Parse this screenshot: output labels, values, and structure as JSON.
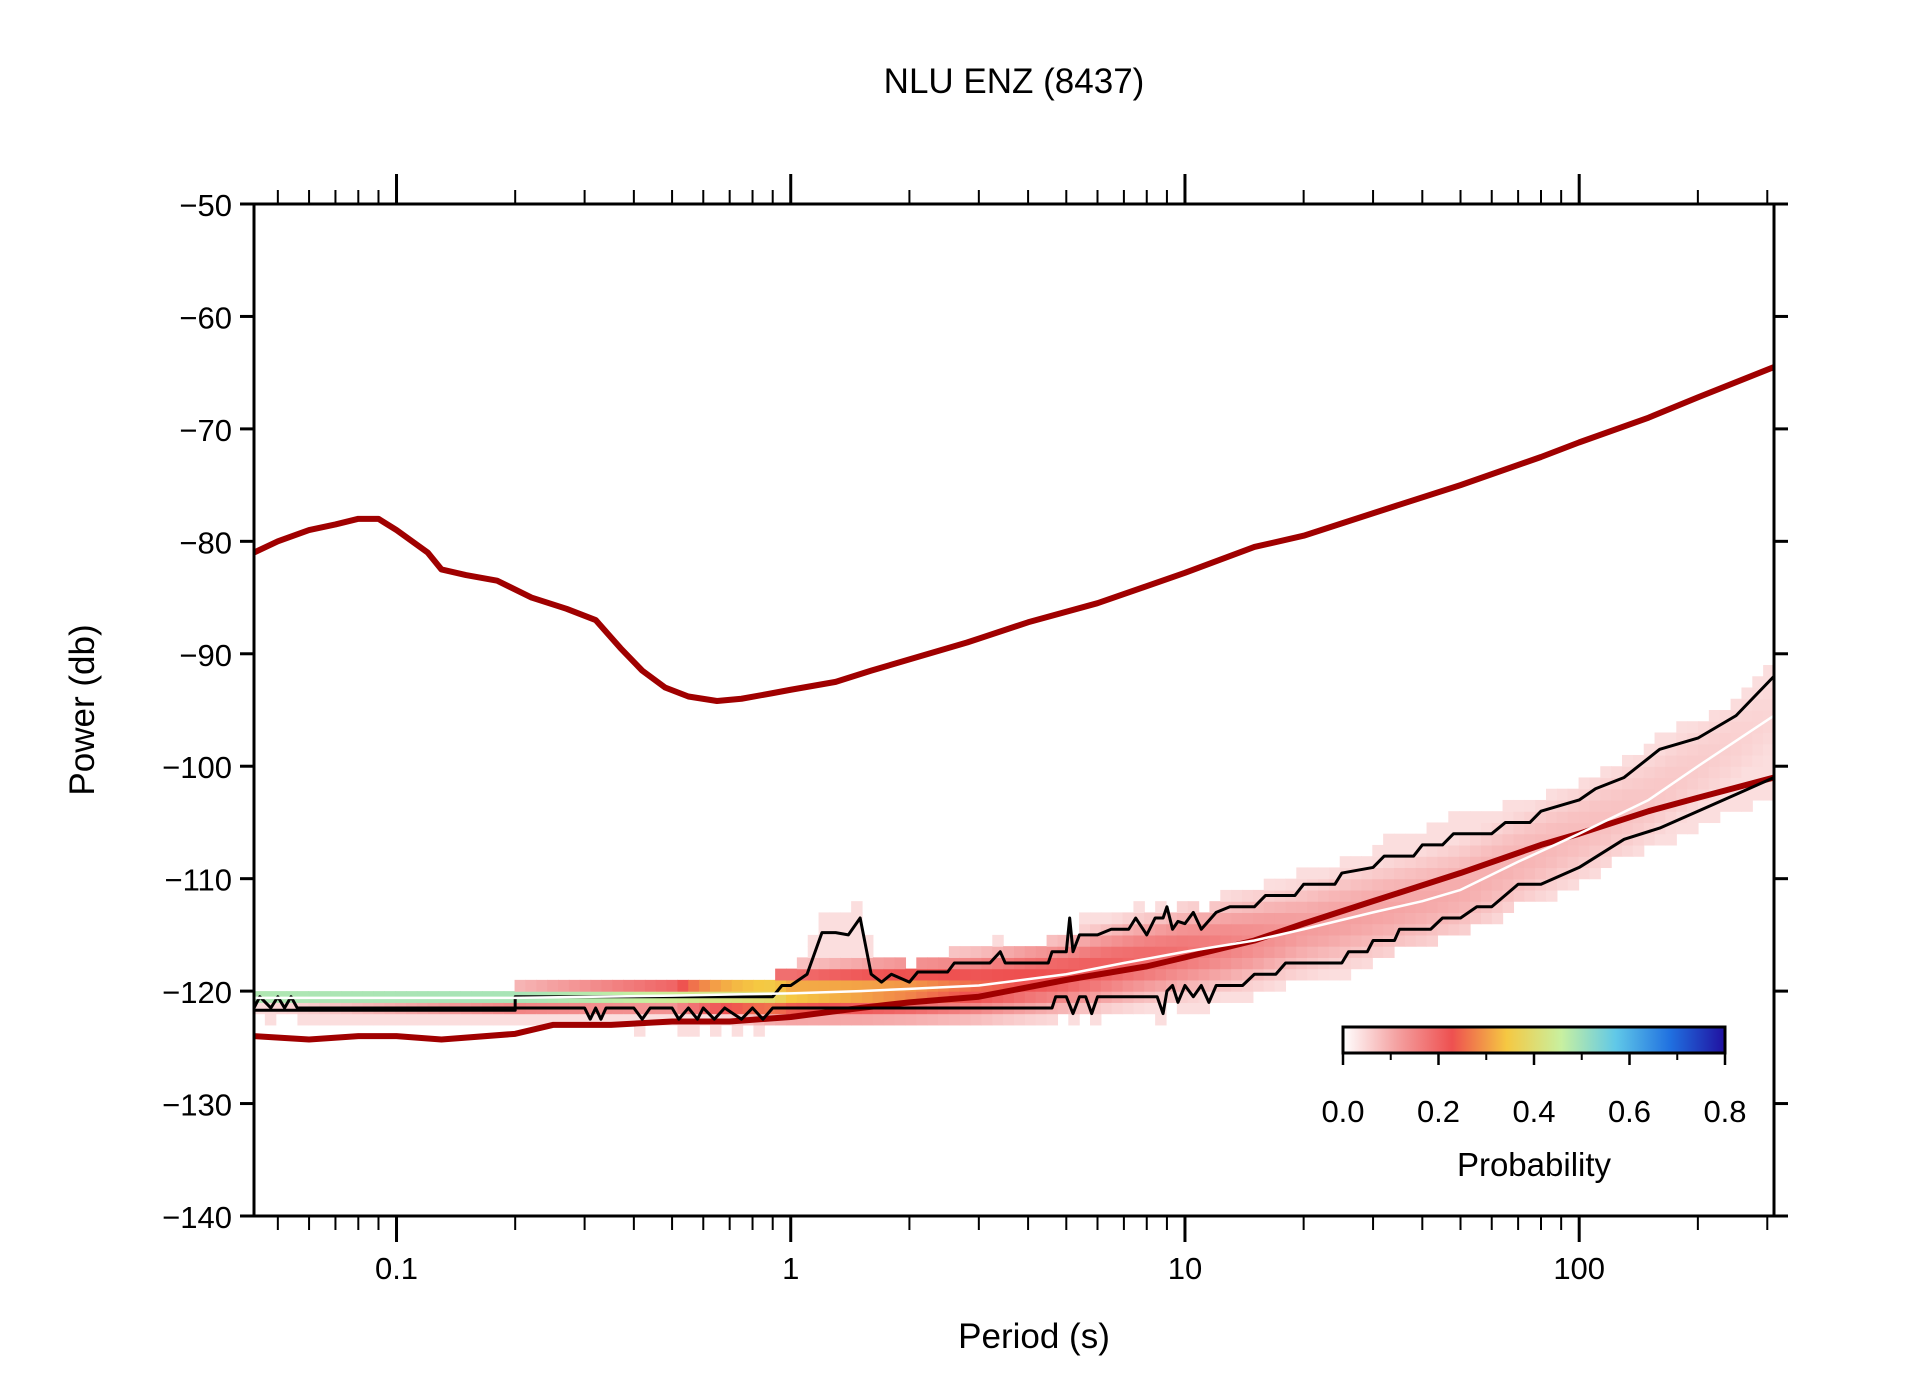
{
  "chart_data": {
    "type": "line",
    "title": "NLU ENZ (8437)",
    "xlabel": "Period (s)",
    "ylabel": "Power (db)",
    "x_scale": "log",
    "xlim": [
      0.0435,
      312
    ],
    "ylim": [
      -140,
      -50
    ],
    "x_ticks": [
      0.1,
      1,
      10,
      100
    ],
    "x_tick_labels": [
      "0.1",
      "1",
      "10",
      "100"
    ],
    "y_ticks": [
      -140,
      -130,
      -120,
      -110,
      -100,
      -90,
      -80,
      -70,
      -60,
      -50
    ],
    "y_tick_labels": [
      "−140",
      "−130",
      "−120",
      "−110",
      "−100",
      "−90",
      "−80",
      "−70",
      "−60",
      "−50"
    ],
    "grid": false,
    "colorbar": {
      "label": "Probability",
      "range": [
        0,
        0.8
      ],
      "ticks": [
        0,
        0.2,
        0.4,
        0.6,
        0.8
      ],
      "tick_labels": [
        "0.0",
        "0.2",
        "0.4",
        "0.6",
        "0.8"
      ],
      "position": "bottom-right",
      "colors": [
        "#ffffff",
        "#f4a0a0",
        "#ee5050",
        "#f5c842",
        "#c8f0a0",
        "#60c8e8",
        "#2070e0",
        "#2010a0"
      ]
    },
    "series": [
      {
        "role": "new-high-noise-model",
        "color": "#a00000",
        "points": [
          [
            0.0435,
            -81
          ],
          [
            0.05,
            -80
          ],
          [
            0.06,
            -79
          ],
          [
            0.07,
            -78.5
          ],
          [
            0.08,
            -78
          ],
          [
            0.09,
            -78
          ],
          [
            0.1,
            -79
          ],
          [
            0.12,
            -81
          ],
          [
            0.13,
            -82.5
          ],
          [
            0.15,
            -83
          ],
          [
            0.18,
            -83.5
          ],
          [
            0.22,
            -85
          ],
          [
            0.27,
            -86
          ],
          [
            0.32,
            -87
          ],
          [
            0.37,
            -89.5
          ],
          [
            0.42,
            -91.5
          ],
          [
            0.48,
            -93
          ],
          [
            0.55,
            -93.8
          ],
          [
            0.65,
            -94.2
          ],
          [
            0.75,
            -94
          ],
          [
            0.9,
            -93.5
          ],
          [
            1.0,
            -93.2
          ],
          [
            1.3,
            -92.5
          ],
          [
            1.6,
            -91.5
          ],
          [
            2.0,
            -90.5
          ],
          [
            2.8,
            -89
          ],
          [
            4.0,
            -87.2
          ],
          [
            6.0,
            -85.5
          ],
          [
            10,
            -82.8
          ],
          [
            15,
            -80.5
          ],
          [
            20,
            -79.5
          ],
          [
            30,
            -77.5
          ],
          [
            50,
            -75
          ],
          [
            80,
            -72.5
          ],
          [
            100,
            -71.2
          ],
          [
            150,
            -69
          ],
          [
            200,
            -67.2
          ],
          [
            312,
            -64.5
          ]
        ]
      },
      {
        "role": "new-low-noise-model",
        "color": "#a00000",
        "points": [
          [
            0.0435,
            -124
          ],
          [
            0.06,
            -124.3
          ],
          [
            0.08,
            -124
          ],
          [
            0.1,
            -124
          ],
          [
            0.13,
            -124.3
          ],
          [
            0.2,
            -123.8
          ],
          [
            0.25,
            -123
          ],
          [
            0.35,
            -123
          ],
          [
            0.5,
            -122.7
          ],
          [
            0.7,
            -122.7
          ],
          [
            1.0,
            -122.3
          ],
          [
            1.5,
            -121.5
          ],
          [
            2,
            -121
          ],
          [
            3,
            -120.5
          ],
          [
            5,
            -119
          ],
          [
            8,
            -117.8
          ],
          [
            10,
            -117
          ],
          [
            15,
            -115.5
          ],
          [
            20,
            -114
          ],
          [
            30,
            -112
          ],
          [
            50,
            -109.5
          ],
          [
            80,
            -107
          ],
          [
            100,
            -106
          ],
          [
            150,
            -104
          ],
          [
            200,
            -102.8
          ],
          [
            312,
            -101
          ]
        ]
      },
      {
        "role": "mode",
        "color": "#ffffff",
        "points": [
          [
            0.0435,
            -120.6
          ],
          [
            0.2,
            -120.6
          ],
          [
            0.5,
            -120.4
          ],
          [
            1.0,
            -120.2
          ],
          [
            1.5,
            -120
          ],
          [
            2.0,
            -119.8
          ],
          [
            3,
            -119.5
          ],
          [
            5,
            -118.5
          ],
          [
            7,
            -117.5
          ],
          [
            10,
            -116.5
          ],
          [
            15,
            -115.5
          ],
          [
            20,
            -114.5
          ],
          [
            30,
            -113
          ],
          [
            40,
            -112
          ],
          [
            50,
            -111
          ],
          [
            70,
            -108.5
          ],
          [
            100,
            -106
          ],
          [
            150,
            -103
          ],
          [
            200,
            -100
          ],
          [
            312,
            -95.5
          ]
        ]
      },
      {
        "role": "upper-percentile",
        "color": "#000000",
        "points": [
          [
            0.0435,
            -121.7
          ],
          [
            0.2,
            -121.7
          ],
          [
            0.2,
            -120.5
          ],
          [
            0.9,
            -120.5
          ],
          [
            0.95,
            -119.5
          ],
          [
            1.0,
            -119.5
          ],
          [
            1.1,
            -118.5
          ],
          [
            1.2,
            -114.8
          ],
          [
            1.3,
            -114.8
          ],
          [
            1.4,
            -115
          ],
          [
            1.5,
            -113.5
          ],
          [
            1.6,
            -118.5
          ],
          [
            1.7,
            -119.2
          ],
          [
            1.8,
            -118.5
          ],
          [
            2.0,
            -119.2
          ],
          [
            2.1,
            -118.3
          ],
          [
            2.5,
            -118.3
          ],
          [
            2.6,
            -117.5
          ],
          [
            3.2,
            -117.5
          ],
          [
            3.4,
            -116.5
          ],
          [
            3.5,
            -117.5
          ],
          [
            4.5,
            -117.5
          ],
          [
            4.6,
            -116.5
          ],
          [
            5.0,
            -116.5
          ],
          [
            5.1,
            -113.5
          ],
          [
            5.2,
            -116.5
          ],
          [
            5.4,
            -115
          ],
          [
            6.0,
            -115
          ],
          [
            6.5,
            -114.5
          ],
          [
            7.2,
            -114.5
          ],
          [
            7.5,
            -113.5
          ],
          [
            8.0,
            -115
          ],
          [
            8.4,
            -113.5
          ],
          [
            8.8,
            -113.5
          ],
          [
            9.0,
            -112.5
          ],
          [
            9.3,
            -114.5
          ],
          [
            9.6,
            -113.8
          ],
          [
            10,
            -114
          ],
          [
            10.5,
            -113
          ],
          [
            11,
            -114.5
          ],
          [
            12,
            -113
          ],
          [
            13,
            -112.5
          ],
          [
            15,
            -112.5
          ],
          [
            16,
            -111.5
          ],
          [
            19,
            -111.5
          ],
          [
            20,
            -110.5
          ],
          [
            24,
            -110.5
          ],
          [
            25,
            -109.5
          ],
          [
            30,
            -109
          ],
          [
            32,
            -108
          ],
          [
            38,
            -108
          ],
          [
            40,
            -107
          ],
          [
            45,
            -107
          ],
          [
            48,
            -106
          ],
          [
            60,
            -106
          ],
          [
            65,
            -105
          ],
          [
            75,
            -105
          ],
          [
            80,
            -104
          ],
          [
            100,
            -103
          ],
          [
            110,
            -102
          ],
          [
            130,
            -101
          ],
          [
            160,
            -98.5
          ],
          [
            200,
            -97.5
          ],
          [
            250,
            -95.5
          ],
          [
            312,
            -92
          ]
        ]
      },
      {
        "role": "lower-percentile",
        "color": "#000000",
        "points": [
          [
            0.0435,
            -121.5
          ],
          [
            0.045,
            -120.5
          ],
          [
            0.048,
            -121.5
          ],
          [
            0.05,
            -120.5
          ],
          [
            0.052,
            -121.5
          ],
          [
            0.054,
            -120.5
          ],
          [
            0.056,
            -121.5
          ],
          [
            0.3,
            -121.5
          ],
          [
            0.31,
            -122.5
          ],
          [
            0.32,
            -121.5
          ],
          [
            0.33,
            -122.5
          ],
          [
            0.34,
            -121.5
          ],
          [
            0.4,
            -121.5
          ],
          [
            0.42,
            -122.5
          ],
          [
            0.44,
            -121.5
          ],
          [
            0.5,
            -121.5
          ],
          [
            0.52,
            -122.5
          ],
          [
            0.55,
            -121.5
          ],
          [
            0.58,
            -122.5
          ],
          [
            0.6,
            -121.5
          ],
          [
            0.64,
            -122.5
          ],
          [
            0.68,
            -121.5
          ],
          [
            0.75,
            -122.5
          ],
          [
            0.8,
            -121.5
          ],
          [
            0.85,
            -122.5
          ],
          [
            0.9,
            -121.5
          ],
          [
            4.6,
            -121.5
          ],
          [
            4.7,
            -120.5
          ],
          [
            5.0,
            -120.5
          ],
          [
            5.2,
            -122
          ],
          [
            5.4,
            -120.5
          ],
          [
            5.6,
            -120.5
          ],
          [
            5.8,
            -122
          ],
          [
            6.0,
            -120.5
          ],
          [
            8.5,
            -120.5
          ],
          [
            8.8,
            -122
          ],
          [
            9.0,
            -120
          ],
          [
            9.3,
            -119.5
          ],
          [
            9.6,
            -121
          ],
          [
            10,
            -119.5
          ],
          [
            10.5,
            -120.5
          ],
          [
            11,
            -119.5
          ],
          [
            11.5,
            -121
          ],
          [
            12,
            -119.5
          ],
          [
            14,
            -119.5
          ],
          [
            15,
            -118.5
          ],
          [
            17,
            -118.5
          ],
          [
            18,
            -117.5
          ],
          [
            25,
            -117.5
          ],
          [
            26,
            -116.5
          ],
          [
            29,
            -116.5
          ],
          [
            30,
            -115.5
          ],
          [
            34,
            -115.5
          ],
          [
            35,
            -114.5
          ],
          [
            42,
            -114.5
          ],
          [
            45,
            -113.5
          ],
          [
            50,
            -113.5
          ],
          [
            55,
            -112.5
          ],
          [
            60,
            -112.5
          ],
          [
            70,
            -110.5
          ],
          [
            80,
            -110.5
          ],
          [
            100,
            -109
          ],
          [
            130,
            -106.5
          ],
          [
            160,
            -105.5
          ],
          [
            200,
            -104
          ],
          [
            250,
            -102.5
          ],
          [
            312,
            -101
          ]
        ]
      }
    ],
    "probability_density": {
      "mode": [
        [
          0.0435,
          -120.6
        ],
        [
          0.2,
          -120.6
        ],
        [
          0.5,
          -120.4
        ],
        [
          1.0,
          -120.2
        ],
        [
          1.5,
          -120
        ],
        [
          2.0,
          -119.8
        ],
        [
          3,
          -119.5
        ],
        [
          5,
          -118.5
        ],
        [
          7,
          -117.5
        ],
        [
          10,
          -116.5
        ],
        [
          15,
          -115.5
        ],
        [
          20,
          -114.5
        ],
        [
          30,
          -113
        ],
        [
          40,
          -112
        ],
        [
          50,
          -111
        ],
        [
          70,
          -108.5
        ],
        [
          100,
          -106
        ],
        [
          150,
          -103
        ],
        [
          200,
          -100
        ],
        [
          312,
          -95.5
        ]
      ],
      "peak_probability": [
        [
          0.0435,
          0.5
        ],
        [
          0.2,
          0.5
        ],
        [
          0.5,
          0.45
        ],
        [
          0.9,
          0.4
        ],
        [
          1.0,
          0.35
        ],
        [
          2.0,
          0.3
        ],
        [
          3.0,
          0.25
        ],
        [
          5.0,
          0.22
        ],
        [
          10,
          0.18
        ],
        [
          20,
          0.12
        ],
        [
          50,
          0.1
        ],
        [
          100,
          0.08
        ],
        [
          312,
          0.05
        ]
      ],
      "half_width_db": [
        [
          0.0435,
          0.4
        ],
        [
          0.5,
          0.7
        ],
        [
          1.0,
          1.5
        ],
        [
          2.0,
          1.8
        ],
        [
          5,
          2.2
        ],
        [
          10,
          2.6
        ],
        [
          20,
          3.0
        ],
        [
          50,
          3.5
        ],
        [
          100,
          3.8
        ],
        [
          312,
          4.5
        ]
      ]
    }
  }
}
